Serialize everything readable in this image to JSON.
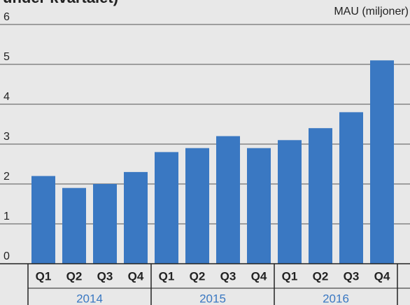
{
  "chart_data": {
    "type": "bar",
    "title": "under kvartalet)",
    "y_axis_label": "MAU (miljoner)",
    "categories": [
      "Q1",
      "Q2",
      "Q3",
      "Q4",
      "Q1",
      "Q2",
      "Q3",
      "Q4",
      "Q1",
      "Q2",
      "Q3",
      "Q4"
    ],
    "groups": [
      "2014",
      "2015",
      "2016"
    ],
    "values": [
      2.2,
      1.9,
      2.0,
      2.3,
      2.8,
      2.9,
      3.2,
      2.9,
      3.1,
      3.4,
      3.8,
      5.1
    ],
    "color": "#3a78c2",
    "ylim": [
      0,
      6
    ],
    "yticks": [
      0,
      1,
      2,
      3,
      4,
      5,
      6
    ],
    "grid": true
  }
}
